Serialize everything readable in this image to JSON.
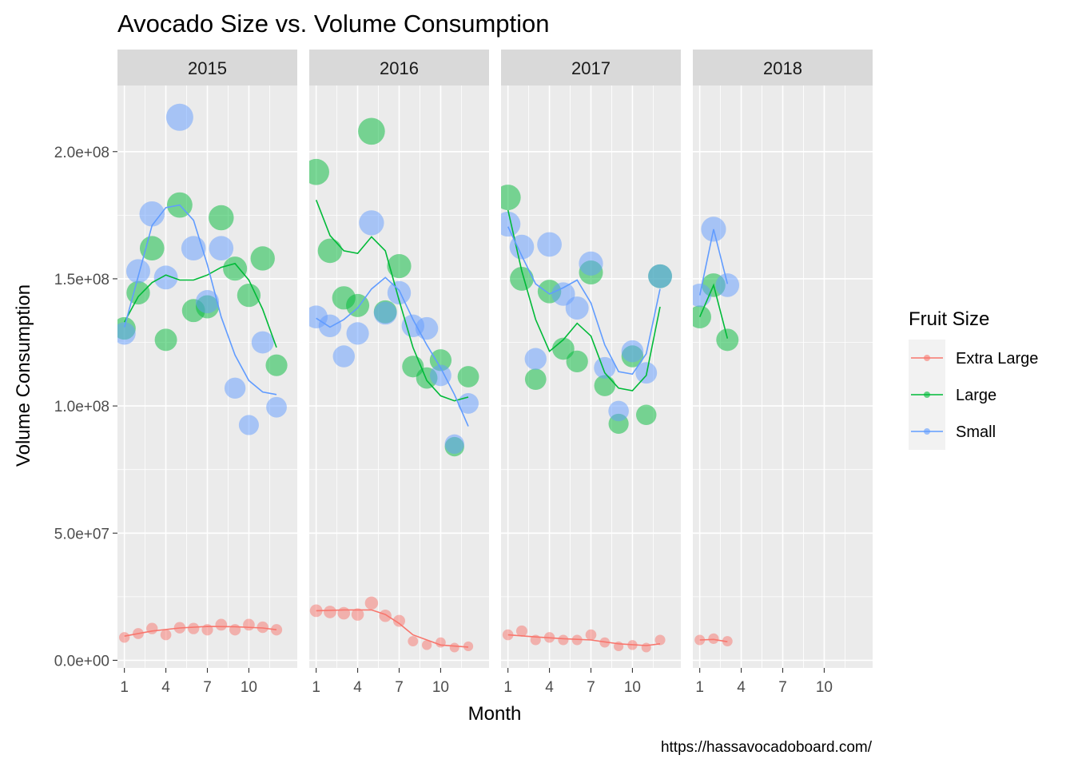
{
  "chart_data": {
    "type": "scatter",
    "title": "Avocado Size vs. Volume Consumption",
    "xlabel": "Month",
    "ylabel": "Volume Consumption",
    "caption": "https://hassavocadoboard.com/",
    "facets": [
      "2015",
      "2016",
      "2017",
      "2018"
    ],
    "xlim": [
      0.5,
      13.5
    ],
    "ylim": [
      -3000000,
      226000000
    ],
    "x_ticks": [
      1,
      4,
      7,
      10
    ],
    "x_tick_labels": [
      "1",
      "4",
      "7",
      "10"
    ],
    "y_ticks": [
      0,
      50000000,
      100000000,
      150000000,
      200000000
    ],
    "y_tick_labels": [
      "0.0e+00",
      "5.0e+07",
      "1.0e+08",
      "1.5e+08",
      "2.0e+08"
    ],
    "grid": true,
    "legend": {
      "title": "Fruit Size",
      "position": "right",
      "entries": [
        "Extra Large",
        "Large",
        "Small"
      ]
    },
    "colors": {
      "Extra Large": "#f8766d",
      "Large": "#00ba38",
      "Small": "#619cff"
    },
    "series": [
      {
        "name": "Extra Large",
        "color": "#f8766d",
        "data": {
          "2015": [
            [
              1,
              9000000
            ],
            [
              2,
              10500000
            ],
            [
              3,
              12500000
            ],
            [
              4,
              10000000
            ],
            [
              5,
              12800000
            ],
            [
              6,
              12500000
            ],
            [
              7,
              12000000
            ],
            [
              8,
              14000000
            ],
            [
              9,
              12000000
            ],
            [
              10,
              14000000
            ],
            [
              11,
              13000000
            ],
            [
              12,
              12000000
            ]
          ],
          "2016": [
            [
              1,
              19500000
            ],
            [
              2,
              19000000
            ],
            [
              3,
              18500000
            ],
            [
              4,
              18000000
            ],
            [
              5,
              22500000
            ],
            [
              6,
              17500000
            ],
            [
              7,
              15500000
            ],
            [
              8,
              7500000
            ],
            [
              9,
              6000000
            ],
            [
              10,
              7000000
            ],
            [
              11,
              5000000
            ],
            [
              12,
              5500000
            ]
          ],
          "2017": [
            [
              1,
              10000000
            ],
            [
              2,
              11500000
            ],
            [
              3,
              8000000
            ],
            [
              4,
              9000000
            ],
            [
              5,
              8000000
            ],
            [
              6,
              8000000
            ],
            [
              7,
              10000000
            ],
            [
              8,
              7000000
            ],
            [
              9,
              5500000
            ],
            [
              10,
              6000000
            ],
            [
              11,
              5000000
            ],
            [
              12,
              8000000
            ]
          ],
          "2018": [
            [
              1,
              8000000
            ],
            [
              2,
              8500000
            ],
            [
              3,
              7500000
            ]
          ]
        },
        "smooth": {
          "2015": [
            [
              1,
              9500000
            ],
            [
              3,
              11500000
            ],
            [
              5,
              12700000
            ],
            [
              7,
              13300000
            ],
            [
              9,
              13200000
            ],
            [
              11,
              12700000
            ],
            [
              12,
              12000000
            ]
          ],
          "2016": [
            [
              1,
              19500000
            ],
            [
              3,
              19800000
            ],
            [
              5,
              19800000
            ],
            [
              6,
              18000000
            ],
            [
              7,
              14500000
            ],
            [
              8,
              10000000
            ],
            [
              10,
              6000000
            ],
            [
              12,
              5200000
            ]
          ],
          "2017": [
            [
              1,
              10000000
            ],
            [
              3,
              9200000
            ],
            [
              5,
              8500000
            ],
            [
              7,
              8000000
            ],
            [
              9,
              6500000
            ],
            [
              11,
              5800000
            ],
            [
              12,
              6500000
            ]
          ],
          "2018": [
            [
              1,
              8000000
            ],
            [
              2,
              8200000
            ],
            [
              3,
              7300000
            ]
          ]
        }
      },
      {
        "name": "Large",
        "color": "#00ba38",
        "data": {
          "2015": [
            [
              1,
              130500000
            ],
            [
              2,
              144500000
            ],
            [
              3,
              162000000
            ],
            [
              4,
              126000000
            ],
            [
              5,
              179000000
            ],
            [
              6,
              137500000
            ],
            [
              7,
              139000000
            ],
            [
              8,
              174000000
            ],
            [
              9,
              154000000
            ],
            [
              10,
              143500000
            ],
            [
              11,
              158000000
            ],
            [
              12,
              116000000
            ]
          ],
          "2016": [
            [
              1,
              192000000
            ],
            [
              2,
              161000000
            ],
            [
              3,
              142500000
            ],
            [
              4,
              139500000
            ],
            [
              5,
              208000000
            ],
            [
              6,
              137000000
            ],
            [
              7,
              155000000
            ],
            [
              8,
              115500000
            ],
            [
              9,
              111000000
            ],
            [
              10,
              118000000
            ],
            [
              11,
              84000000
            ],
            [
              12,
              111500000
            ]
          ],
          "2017": [
            [
              1,
              182000000
            ],
            [
              2,
              150000000
            ],
            [
              3,
              110500000
            ],
            [
              4,
              145000000
            ],
            [
              5,
              122500000
            ],
            [
              6,
              117500000
            ],
            [
              7,
              152500000
            ],
            [
              8,
              108000000
            ],
            [
              9,
              93000000
            ],
            [
              10,
              119500000
            ],
            [
              11,
              96500000
            ],
            [
              12,
              151000000
            ]
          ],
          "2018": [
            [
              1,
              135000000
            ],
            [
              2,
              147500000
            ],
            [
              3,
              126000000
            ]
          ]
        },
        "smooth": {
          "2015": [
            [
              1,
              133000000
            ],
            [
              2,
              143000000
            ],
            [
              3,
              148500000
            ],
            [
              4,
              151500000
            ],
            [
              5,
              149500000
            ],
            [
              6,
              149500000
            ],
            [
              7,
              151500000
            ],
            [
              8,
              154500000
            ],
            [
              9,
              156000000
            ],
            [
              10,
              149500000
            ],
            [
              11,
              138000000
            ],
            [
              12,
              123000000
            ]
          ],
          "2016": [
            [
              1,
              181000000
            ],
            [
              2,
              167000000
            ],
            [
              3,
              161000000
            ],
            [
              4,
              160000000
            ],
            [
              5,
              166500000
            ],
            [
              6,
              161000000
            ],
            [
              7,
              141500000
            ],
            [
              8,
              123000000
            ],
            [
              9,
              110000000
            ],
            [
              10,
              104000000
            ],
            [
              11,
              102000000
            ],
            [
              12,
              103500000
            ]
          ],
          "2017": [
            [
              1,
              177000000
            ],
            [
              2,
              153000000
            ],
            [
              3,
              134000000
            ],
            [
              4,
              121500000
            ],
            [
              5,
              126000000
            ],
            [
              6,
              132500000
            ],
            [
              7,
              127500000
            ],
            [
              8,
              113000000
            ],
            [
              9,
              107000000
            ],
            [
              10,
              106000000
            ],
            [
              11,
              112000000
            ],
            [
              12,
              139000000
            ]
          ],
          "2018": [
            [
              1,
              135000000
            ],
            [
              2,
              147500000
            ],
            [
              3,
              126500000
            ]
          ]
        }
      },
      {
        "name": "Small",
        "color": "#619cff",
        "data": {
          "2015": [
            [
              1,
              128500000
            ],
            [
              2,
              153000000
            ],
            [
              3,
              175500000
            ],
            [
              4,
              150500000
            ],
            [
              5,
              213500000
            ],
            [
              6,
              162000000
            ],
            [
              7,
              141000000
            ],
            [
              8,
              162000000
            ],
            [
              9,
              107000000
            ],
            [
              10,
              92500000
            ],
            [
              11,
              125000000
            ],
            [
              12,
              99500000
            ]
          ],
          "2016": [
            [
              1,
              135000000
            ],
            [
              2,
              131500000
            ],
            [
              3,
              119500000
            ],
            [
              4,
              128500000
            ],
            [
              5,
              172000000
            ],
            [
              6,
              136500000
            ],
            [
              7,
              144500000
            ],
            [
              8,
              131500000
            ],
            [
              9,
              130500000
            ],
            [
              10,
              112000000
            ],
            [
              11,
              85000000
            ],
            [
              12,
              101000000
            ]
          ],
          "2017": [
            [
              1,
              171500000
            ],
            [
              2,
              162500000
            ],
            [
              3,
              118500000
            ],
            [
              4,
              163500000
            ],
            [
              5,
              144000000
            ],
            [
              6,
              138500000
            ],
            [
              7,
              156000000
            ],
            [
              8,
              115000000
            ],
            [
              9,
              98000000
            ],
            [
              10,
              121500000
            ],
            [
              11,
              113000000
            ],
            [
              12,
              151000000
            ]
          ],
          "2018": [
            [
              1,
              143500000
            ],
            [
              2,
              169500000
            ],
            [
              3,
              147500000
            ]
          ]
        },
        "smooth": {
          "2015": [
            [
              1,
              131000000
            ],
            [
              2,
              151000000
            ],
            [
              3,
              171000000
            ],
            [
              4,
              178000000
            ],
            [
              5,
              179000000
            ],
            [
              6,
              173000000
            ],
            [
              7,
              155500000
            ],
            [
              8,
              135000000
            ],
            [
              9,
              120000000
            ],
            [
              10,
              110000000
            ],
            [
              11,
              105500000
            ],
            [
              12,
              104500000
            ]
          ],
          "2016": [
            [
              1,
              134500000
            ],
            [
              2,
              131000000
            ],
            [
              3,
              134000000
            ],
            [
              4,
              138500000
            ],
            [
              5,
              146000000
            ],
            [
              6,
              150500000
            ],
            [
              7,
              145500000
            ],
            [
              8,
              134000000
            ],
            [
              9,
              124000000
            ],
            [
              10,
              115000000
            ],
            [
              11,
              104500000
            ],
            [
              12,
              92000000
            ]
          ],
          "2017": [
            [
              1,
              170500000
            ],
            [
              2,
              159000000
            ],
            [
              3,
              148000000
            ],
            [
              4,
              144000000
            ],
            [
              5,
              146500000
            ],
            [
              6,
              149500000
            ],
            [
              7,
              140500000
            ],
            [
              8,
              124000000
            ],
            [
              9,
              113500000
            ],
            [
              10,
              112500000
            ],
            [
              11,
              120500000
            ],
            [
              12,
              146000000
            ]
          ],
          "2018": [
            [
              1,
              143500000
            ],
            [
              2,
              169500000
            ],
            [
              3,
              148000000
            ]
          ]
        }
      }
    ]
  }
}
